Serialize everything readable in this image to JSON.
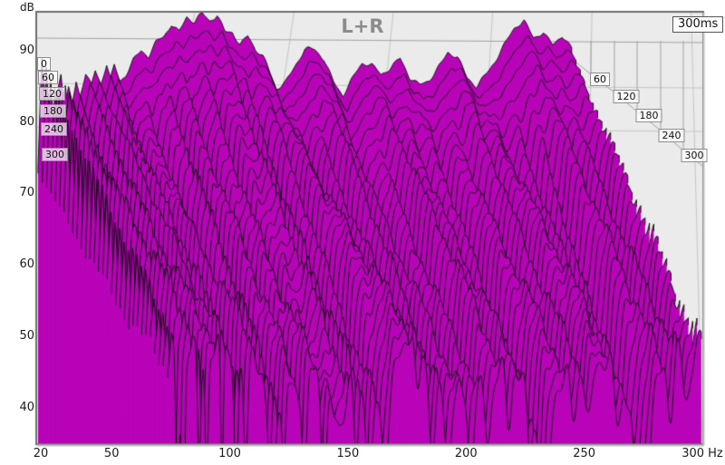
{
  "title": "L+R",
  "window_badge": "300ms",
  "axes": {
    "y_unit": "dB",
    "y_ticks": [
      "90",
      "80",
      "70",
      "60",
      "50",
      "40"
    ],
    "x_ticks": [
      "20",
      "50",
      "100",
      "150",
      "200",
      "250",
      "300 Hz"
    ]
  },
  "time_axis": {
    "unit": "ms",
    "left_labels": [
      "0",
      "60",
      "120",
      "180",
      "240",
      "300"
    ],
    "right_labels": [
      "60",
      "120",
      "180",
      "240",
      "300"
    ]
  },
  "colors": {
    "fill": "#b803b8",
    "line": "#0b0b0b",
    "plot_bg": "#ebebeb",
    "grid": "#c6c6c6",
    "grid_dark": "#a2a2a2",
    "frame": "#6e6e6e",
    "title": "#8c8c8c",
    "page_bg": "#ffffff"
  },
  "chart_data": {
    "type": "area",
    "subtype": "spectral-decay-waterfall",
    "title": "L+R",
    "xlabel": "Hz",
    "ylabel": "dB",
    "x_axis": {
      "min": 20,
      "max": 300,
      "scale": "linear",
      "ticks": [
        20,
        50,
        100,
        150,
        200,
        250,
        300
      ]
    },
    "y_axis": {
      "min": 40,
      "max": 95,
      "ticks": [
        90,
        80,
        70,
        60,
        50,
        40
      ]
    },
    "time_axis_ms": {
      "start": 0,
      "end": 300,
      "slices": 31,
      "labels": [
        0,
        60,
        120,
        180,
        240,
        300
      ],
      "window_label": "300ms"
    },
    "legend_position": "none",
    "grid": true,
    "spectrum_at_0ms": {
      "freq_hz": [
        20,
        21,
        22,
        23,
        24,
        25,
        26,
        27,
        28,
        30,
        32,
        34,
        36,
        38,
        40,
        42,
        45,
        48,
        50,
        53,
        56,
        58,
        60,
        63,
        66,
        70,
        74,
        78,
        82,
        86,
        90,
        94,
        98,
        102,
        106,
        110,
        114,
        118,
        122,
        126,
        130,
        134,
        138,
        140,
        145,
        150,
        155,
        160,
        165,
        170,
        175,
        180,
        185,
        190,
        195,
        200,
        205,
        210,
        215,
        220,
        225,
        230,
        235,
        240,
        245,
        250,
        255,
        260,
        265,
        270,
        275,
        280,
        285,
        290,
        295,
        300
      ],
      "db": [
        74,
        82,
        89,
        85,
        80,
        84,
        78,
        81,
        75,
        84,
        87,
        82,
        85,
        83,
        86,
        84,
        87,
        85,
        87,
        85,
        88,
        86,
        88,
        86,
        87,
        89,
        90,
        89,
        91,
        92,
        94,
        93,
        95,
        94,
        95,
        94,
        95,
        93,
        93,
        91,
        92,
        90,
        89,
        88,
        85,
        86,
        88,
        90,
        90,
        89,
        86,
        84,
        86,
        88,
        88,
        87,
        88,
        89,
        86,
        85,
        86,
        88,
        90,
        89,
        86,
        85,
        87,
        89,
        91,
        93,
        94,
        92,
        93,
        91,
        92,
        90
      ]
    },
    "spectrum_at_300ms": {
      "freq_hz": [
        20,
        22,
        24,
        26,
        28,
        30,
        33,
        36,
        40,
        45,
        50,
        55,
        60,
        65,
        70,
        73,
        76,
        80,
        85,
        91,
        95,
        100,
        105,
        110,
        115,
        120,
        125,
        130,
        136,
        142,
        148,
        155,
        162,
        170,
        175,
        180,
        186,
        192,
        200,
        208,
        215,
        222,
        230,
        238,
        245,
        252,
        258,
        262,
        268,
        274,
        280,
        286,
        292,
        300
      ],
      "db": [
        60,
        66,
        62,
        58,
        52,
        60,
        64,
        60,
        57,
        62,
        64,
        60,
        57,
        60,
        54,
        49,
        54,
        58,
        57,
        53,
        56,
        58,
        55,
        52,
        55,
        56,
        52,
        55,
        57,
        60,
        62,
        60,
        58,
        55,
        52,
        55,
        58,
        60,
        58,
        55,
        52,
        54,
        57,
        60,
        61,
        60,
        56,
        53,
        52,
        55,
        58,
        60,
        62,
        64
      ]
    },
    "decay_notches": [
      {
        "hz": 23.5,
        "depth_db": 24,
        "width_hz": 0.7,
        "drift_hz": 1.5
      },
      {
        "hz": 29,
        "depth_db": 22,
        "width_hz": 0.8,
        "drift_hz": -1
      },
      {
        "hz": 35.5,
        "depth_db": 18,
        "width_hz": 0.9,
        "drift_hz": 1
      },
      {
        "hz": 42,
        "depth_db": 16,
        "width_hz": 0.8,
        "drift_hz": -1.5
      },
      {
        "hz": 47.5,
        "depth_db": 20,
        "width_hz": 0.7,
        "drift_hz": 1
      },
      {
        "hz": 54,
        "depth_db": 15,
        "width_hz": 0.9,
        "drift_hz": 2
      },
      {
        "hz": 62,
        "depth_db": 14,
        "width_hz": 1.0,
        "drift_hz": -1
      },
      {
        "hz": 73,
        "depth_db": 16,
        "width_hz": 1.2,
        "drift_hz": 2
      },
      {
        "hz": 83,
        "depth_db": 12,
        "width_hz": 1.0,
        "drift_hz": -2
      },
      {
        "hz": 91,
        "depth_db": 14,
        "width_hz": 1.1,
        "drift_hz": 1
      },
      {
        "hz": 103,
        "depth_db": 15,
        "width_hz": 1.3,
        "drift_hz": -1
      },
      {
        "hz": 117,
        "depth_db": 12,
        "width_hz": 1.2,
        "drift_hz": 2
      },
      {
        "hz": 125,
        "depth_db": 14,
        "width_hz": 1.4,
        "drift_hz": 1
      },
      {
        "hz": 136,
        "depth_db": 10,
        "width_hz": 1.5,
        "drift_hz": -2
      },
      {
        "hz": 149,
        "depth_db": 9,
        "width_hz": 1.3,
        "drift_hz": 2
      },
      {
        "hz": 158,
        "depth_db": 10,
        "width_hz": 1.6,
        "drift_hz": 1
      },
      {
        "hz": 168,
        "depth_db": 11,
        "width_hz": 1.5,
        "drift_hz": -1
      },
      {
        "hz": 177,
        "depth_db": 12,
        "width_hz": 1.4,
        "drift_hz": 2
      },
      {
        "hz": 189,
        "depth_db": 9,
        "width_hz": 1.7,
        "drift_hz": -1
      },
      {
        "hz": 198,
        "depth_db": 10,
        "width_hz": 1.5,
        "drift_hz": 1
      },
      {
        "hz": 209,
        "depth_db": 11,
        "width_hz": 1.8,
        "drift_hz": 2
      },
      {
        "hz": 220,
        "depth_db": 12,
        "width_hz": 1.6,
        "drift_hz": -1
      },
      {
        "hz": 232,
        "depth_db": 9,
        "width_hz": 1.8,
        "drift_hz": 1
      },
      {
        "hz": 243,
        "depth_db": 8,
        "width_hz": 1.7,
        "drift_hz": -2
      },
      {
        "hz": 255,
        "depth_db": 9,
        "width_hz": 1.9,
        "drift_hz": 1
      },
      {
        "hz": 264,
        "depth_db": 12,
        "width_hz": 1.6,
        "drift_hz": 2
      },
      {
        "hz": 272,
        "depth_db": 10,
        "width_hz": 1.8,
        "drift_hz": -1
      },
      {
        "hz": 283,
        "depth_db": 9,
        "width_hz": 1.7,
        "drift_hz": 1
      },
      {
        "hz": 293,
        "depth_db": 8,
        "width_hz": 1.9,
        "drift_hz": -1
      }
    ]
  }
}
